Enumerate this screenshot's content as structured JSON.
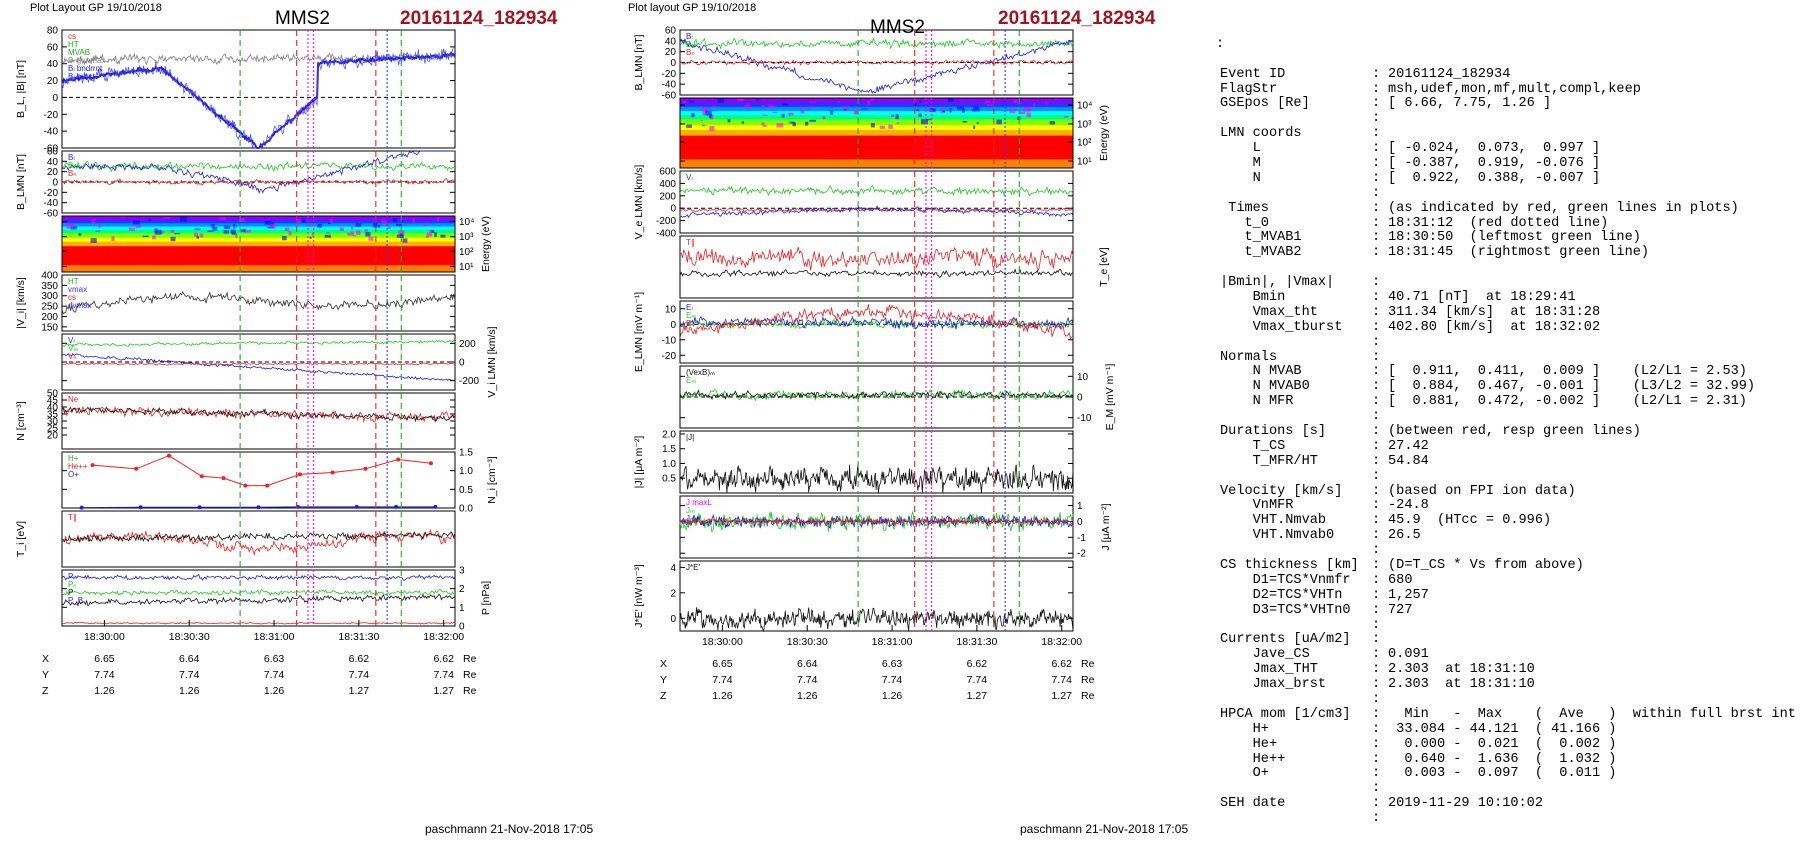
{
  "left_panel": {
    "layout_label": "Plot Layout GP 19/10/2018",
    "spacecraft": "MMS2",
    "event": "20161124_182934",
    "footer": "paschmann 21-Nov-2018 17:05",
    "time_ticks": [
      "18:30:00",
      "18:30:30",
      "18:31:00",
      "18:31:30",
      "18:32:00"
    ],
    "ephem_rows": [
      {
        "label": "X",
        "values": [
          "6.65",
          "6.64",
          "6.63",
          "6.62",
          "6.62"
        ],
        "unit": "Re"
      },
      {
        "label": "Y",
        "values": [
          "7.74",
          "7.74",
          "7.74",
          "7.74",
          "7.74"
        ],
        "unit": "Re"
      },
      {
        "label": "Z",
        "values": [
          "1.26",
          "1.26",
          "1.26",
          "1.27",
          "1.27"
        ],
        "unit": "Re"
      }
    ]
  },
  "right_panel": {
    "layout_label": "Plot layout GP 19/10/2018",
    "spacecraft": "MMS2",
    "event": "20161124_182934",
    "footer": "paschmann 21-Nov-2018 17:05",
    "time_ticks": [
      "18:30:00",
      "18:30:30",
      "18:31:00",
      "18:31:30",
      "18:32:00"
    ],
    "ephem_rows": [
      {
        "label": "X",
        "values": [
          "6.65",
          "6.64",
          "6.63",
          "6.62",
          "6.62"
        ],
        "unit": "Re"
      },
      {
        "label": "Y",
        "values": [
          "7.74",
          "7.74",
          "7.74",
          "7.74",
          "7.74"
        ],
        "unit": "Re"
      },
      {
        "label": "Z",
        "values": [
          "1.26",
          "1.26",
          "1.26",
          "1.27",
          "1.27"
        ],
        "unit": "Re"
      }
    ]
  },
  "info": {
    "top_mark": ":",
    "rows": [
      {
        "key": "Event ID",
        "sep": ":",
        "val": "20161124_182934"
      },
      {
        "key": "FlagStr",
        "sep": ":",
        "val": "msh,udef,mon,mf,mult,compl,keep"
      },
      {
        "key": "GSEpos [Re]",
        "sep": ":",
        "val": "[ 6.66, 7.75, 1.26 ]"
      },
      {
        "key": "",
        "sep": ":",
        "val": ""
      },
      {
        "key": "LMN coords",
        "sep": ":",
        "val": ""
      },
      {
        "key": "    L",
        "sep": ":",
        "val": "[ -0.024,  0.073,  0.997 ]"
      },
      {
        "key": "    M",
        "sep": ":",
        "val": "[ -0.387,  0.919, -0.076 ]"
      },
      {
        "key": "    N",
        "sep": ":",
        "val": "[  0.922,  0.388, -0.007 ]"
      },
      {
        "key": "",
        "sep": ":",
        "val": ""
      },
      {
        "key": " Times",
        "sep": ":",
        "val": "(as indicated by red, green lines in plots)"
      },
      {
        "key": "   t_0",
        "sep": ":",
        "val": "18:31:12  (red dotted line)"
      },
      {
        "key": "   t_MVAB1",
        "sep": ":",
        "val": "18:30:50  (leftmost green line)"
      },
      {
        "key": "   t_MVAB2",
        "sep": ":",
        "val": "18:31:45  (rightmost green line)"
      },
      {
        "key": "",
        "sep": "",
        "val": ""
      },
      {
        "key": "|Bmin|, |Vmax|",
        "sep": ":",
        "val": ""
      },
      {
        "key": "    Bmin",
        "sep": ":",
        "val": "40.71 [nT]  at 18:29:41"
      },
      {
        "key": "    Vmax_tht",
        "sep": ":",
        "val": "311.34 [km/s]  at 18:31:28"
      },
      {
        "key": "    Vmax_tburst",
        "sep": ":",
        "val": "402.80 [km/s]  at 18:32:02"
      },
      {
        "key": "",
        "sep": ":",
        "val": ""
      },
      {
        "key": "Normals",
        "sep": ":",
        "val": ""
      },
      {
        "key": "    N MVAB",
        "sep": ":",
        "val": "[  0.911,  0.411,  0.009 ]    (L2/L1 = 2.53)"
      },
      {
        "key": "    N MVAB0",
        "sep": ":",
        "val": "[  0.884,  0.467, -0.001 ]    (L3/L2 = 32.99)"
      },
      {
        "key": "    N MFR",
        "sep": ":",
        "val": "[  0.881,  0.472, -0.002 ]    (L2/L1 = 2.31)"
      },
      {
        "key": "",
        "sep": ":",
        "val": ""
      },
      {
        "key": "Durations [s]",
        "sep": ":",
        "val": "(between red, resp green lines)"
      },
      {
        "key": "    T_CS",
        "sep": ":",
        "val": "27.42"
      },
      {
        "key": "    T_MFR/HT",
        "sep": ":",
        "val": "54.84"
      },
      {
        "key": "",
        "sep": ":",
        "val": ""
      },
      {
        "key": "Velocity [km/s]",
        "sep": ":",
        "val": "(based on FPI ion data)"
      },
      {
        "key": "    VnMFR",
        "sep": ":",
        "val": "-24.8"
      },
      {
        "key": "    VHT.Nmvab",
        "sep": ":",
        "val": "45.9  (HTcc = 0.996)"
      },
      {
        "key": "    VHT.Nmvab0",
        "sep": ":",
        "val": "26.5"
      },
      {
        "key": "",
        "sep": ":",
        "val": ""
      },
      {
        "key": "CS thickness [km]",
        "sep": ":",
        "val": "(D=T_CS * Vs from above)"
      },
      {
        "key": "    D1=TCS*Vnmfr",
        "sep": ":",
        "val": "680"
      },
      {
        "key": "    D2=TCS*VHTn",
        "sep": ":",
        "val": "1,257"
      },
      {
        "key": "    D3=TCS*VHTn0",
        "sep": ":",
        "val": "727"
      },
      {
        "key": "",
        "sep": ":",
        "val": ""
      },
      {
        "key": "Currents [uA/m2]",
        "sep": ":",
        "val": ""
      },
      {
        "key": "    Jave_CS",
        "sep": ":",
        "val": "0.091"
      },
      {
        "key": "    Jmax_THT",
        "sep": ":",
        "val": "2.303  at 18:31:10"
      },
      {
        "key": "    Jmax_brst",
        "sep": ":",
        "val": "2.303  at 18:31:10"
      },
      {
        "key": "",
        "sep": ":",
        "val": ""
      },
      {
        "key": "HPCA mom [1/cm3]",
        "sep": ":",
        "val": "  Min   -  Max    (  Ave   )  within full brst int"
      },
      {
        "key": "    H+",
        "sep": ":",
        "val": " 33.084 - 44.121  ( 41.166 )"
      },
      {
        "key": "    He+",
        "sep": ":",
        "val": "  0.000 -  0.021  (  0.002 )"
      },
      {
        "key": "    He++",
        "sep": ":",
        "val": "  0.640 -  1.636  (  1.032 )"
      },
      {
        "key": "    O+",
        "sep": ":",
        "val": "  0.003 -  0.097  (  0.011 )"
      },
      {
        "key": "",
        "sep": ":",
        "val": ""
      },
      {
        "key": "SEH date",
        "sep": ":",
        "val": "2019-11-29 10:10:02"
      },
      {
        "key": "",
        "sep": ":",
        "val": ""
      }
    ]
  },
  "chart_data": [
    {
      "type": "line",
      "panel": "left",
      "time_range": [
        "18:29:45",
        "18:32:04"
      ],
      "event_lines": {
        "t_0": "18:31:12",
        "t_MVAB1": "18:30:50",
        "t_MVAB2": "18:31:45"
      },
      "subpanels": [
        {
          "ylabel": "B_L, |B| [nT]",
          "ylim": [
            -60,
            80
          ],
          "yticks": [
            -60,
            -40,
            -20,
            0,
            20,
            40,
            60,
            80
          ],
          "legend": [
            "cs",
            "HT",
            "MVAB",
            "B_L gunmax",
            "B_L bndrrot",
            "B_L burst"
          ],
          "series": [
            {
              "name": "|B|",
              "color": "#808080",
              "x": [
                0,
                0.5,
                1,
                1.5,
                2,
                2.5
              ],
              "y": [
                45,
                48,
                52,
                50,
                53,
                55
              ]
            },
            {
              "name": "B_L",
              "color": "#1f1fd8",
              "x": [
                0,
                0.5,
                1,
                1.5,
                2,
                2.5
              ],
              "y": [
                20,
                40,
                -50,
                10,
                40,
                50
              ]
            }
          ]
        },
        {
          "ylabel": "B_LMN [nT]",
          "ylim": [
            -60,
            60
          ],
          "yticks": [
            -60,
            -40,
            -20,
            0,
            20,
            40,
            60
          ],
          "series": [
            {
              "name": "B_L"
            },
            {
              "name": "B_M"
            },
            {
              "name": "B_N"
            }
          ]
        },
        {
          "type": "heatmap",
          "ylabel": "Energy (eV)",
          "yticks": [
            "10^1",
            "10^2",
            "10^3",
            "10^4"
          ]
        },
        {
          "ylabel": "|V_i| [km/s]",
          "ylim": [
            130,
            400
          ],
          "yticks": [
            150,
            200,
            250,
            300,
            350,
            400
          ],
          "legend": [
            "HT",
            "vmax",
            "cs",
            "dvmax"
          ]
        },
        {
          "ylabel": "V_i LMN [km/s]",
          "yticks": [
            -200,
            0,
            200
          ],
          "series": [
            {
              "name": "V_L"
            },
            {
              "name": "V_M"
            },
            {
              "name": "V_N"
            }
          ]
        },
        {
          "ylabel": "N [cm^-3]",
          "ylim": [
            10,
            50
          ],
          "yticks": [
            20,
            25,
            30,
            35,
            40,
            45,
            50
          ],
          "series": [
            {
              "name": "Ne"
            }
          ]
        },
        {
          "ylabel": "N_i [cm^-3]",
          "ylim": [
            0,
            1.5
          ],
          "yticks": [
            0.0,
            0.5,
            1.0,
            1.5
          ],
          "series": [
            {
              "name": "He++",
              "x": [
                0.05,
                0.25,
                0.4,
                0.55,
                0.65,
                0.75,
                0.85,
                1.0,
                1.15,
                1.3,
                1.45,
                1.6
              ],
              "y": [
                1.15,
                1.05,
                1.4,
                0.85,
                0.8,
                0.6,
                0.6,
                0.9,
                0.95,
                1.05,
                1.3,
                1.2
              ]
            },
            {
              "name": "O+",
              "y": [
                0.01,
                0.02,
                0.02,
                0.02,
                0.03,
                0.03,
                0.03,
                0.03
              ]
            },
            {
              "name": "H+"
            }
          ]
        },
        {
          "ylabel": "T_i [eV]",
          "series": [
            {
              "name": "T_par"
            },
            {
              "name": "T_perp"
            }
          ]
        },
        {
          "ylabel": "P [nPa]",
          "ylim": [
            0,
            3
          ],
          "yticks": [
            0,
            1,
            2,
            3
          ],
          "series": [
            {
              "name": "P_i"
            },
            {
              "name": "P_e"
            },
            {
              "name": "P_B"
            },
            {
              "name": "P"
            }
          ]
        }
      ]
    },
    {
      "type": "line",
      "panel": "right",
      "time_range": [
        "18:29:45",
        "18:32:04"
      ],
      "subpanels": [
        {
          "ylabel": "B_LMN [nT]",
          "ylim": [
            -60,
            60
          ],
          "yticks": [
            -60,
            -40,
            -20,
            0,
            20,
            40,
            60
          ],
          "series": [
            {
              "name": "B_L"
            },
            {
              "name": "B_M"
            },
            {
              "name": "B_N"
            }
          ]
        },
        {
          "type": "heatmap",
          "ylabel": "Energy (eV)",
          "yticks": [
            "10^1",
            "10^2",
            "10^3",
            "10^4"
          ]
        },
        {
          "ylabel": "V_e LMN [km/s]",
          "ylim": [
            -400,
            600
          ],
          "yticks": [
            -400,
            -200,
            0,
            200,
            400,
            600
          ],
          "series": [
            {
              "name": "V_L"
            },
            {
              "name": "V_M"
            },
            {
              "name": "V_N"
            }
          ]
        },
        {
          "ylabel": "T_e [eV]",
          "series": [
            {
              "name": "T_par"
            },
            {
              "name": "T_perp"
            }
          ]
        },
        {
          "ylabel": "E_LMN [mV m^-1]",
          "ylim": [
            -25,
            15
          ],
          "yticks": [
            -20,
            -10,
            0,
            10
          ],
          "series": [
            {
              "name": "E_L"
            },
            {
              "name": "E_M"
            },
            {
              "name": "E_N"
            }
          ]
        },
        {
          "ylabel": "E_M [mV m^-1]",
          "ylim": [
            -15,
            15
          ],
          "yticks": [
            -10,
            0,
            10
          ],
          "series": [
            {
              "name": "(VexB)_M"
            },
            {
              "name": "E_M"
            }
          ]
        },
        {
          "ylabel": "|J| [uA m^-2]",
          "ylim": [
            0,
            2
          ],
          "yticks": [
            0.5,
            1.0,
            1.5,
            2.0
          ],
          "series": [
            {
              "name": "|J|"
            }
          ]
        },
        {
          "ylabel": "J [uA m^-2]",
          "ylim": [
            -2,
            1.5
          ],
          "yticks": [
            -2,
            -1,
            0,
            1
          ],
          "series": [
            {
              "name": "J_maxL"
            },
            {
              "name": "J_M"
            },
            {
              "name": "J_N"
            }
          ]
        },
        {
          "ylabel": "J*E' [nW m^-3]",
          "ylim": [
            -1,
            4.5
          ],
          "yticks": [
            0,
            2,
            4
          ],
          "series": [
            {
              "name": "J*E'"
            }
          ]
        }
      ]
    }
  ]
}
